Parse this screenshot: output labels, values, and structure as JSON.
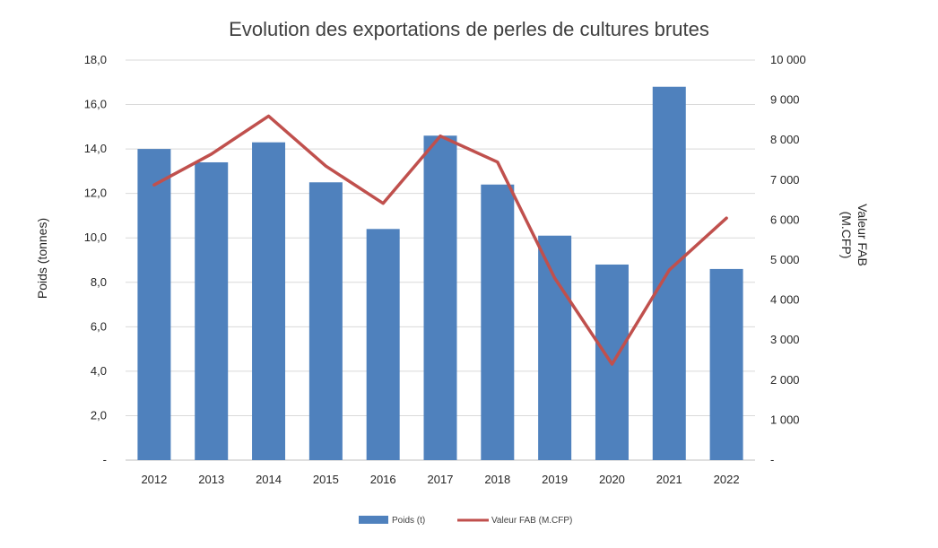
{
  "chart_data": {
    "type": "bar+line",
    "title": "Evolution des exportations de perles de cultures brutes",
    "categories": [
      "2012",
      "2013",
      "2014",
      "2015",
      "2016",
      "2017",
      "2018",
      "2019",
      "2020",
      "2021",
      "2022"
    ],
    "series": [
      {
        "name": "Poids (t)",
        "type": "bar",
        "axis": "left",
        "color": "#4F81BD",
        "values": [
          14.0,
          13.4,
          14.3,
          12.5,
          10.4,
          14.6,
          12.4,
          10.1,
          8.8,
          16.8,
          8.6
        ]
      },
      {
        "name": "Valeur FAB (M.CFP)",
        "type": "line",
        "axis": "right",
        "color": "#C0504D",
        "values": [
          6880,
          7650,
          8600,
          7350,
          6420,
          8100,
          7450,
          4550,
          2400,
          4750,
          6050
        ]
      }
    ],
    "y_left": {
      "label": "Poids (tonnes)",
      "min": 0,
      "max": 18,
      "ticks": [
        "-",
        "2,0",
        "4,0",
        "6,0",
        "8,0",
        "10,0",
        "12,0",
        "14,0",
        "16,0",
        "18,0"
      ]
    },
    "y_right": {
      "label_lines": [
        "Valeur FAB",
        "(M.CFP)"
      ],
      "min": 0,
      "max": 10000,
      "ticks": [
        "-",
        "1 000",
        "2 000",
        "3 000",
        "4 000",
        "5 000",
        "6 000",
        "7 000",
        "8 000",
        "9 000",
        "10 000"
      ]
    },
    "grid": true,
    "legend_position": "bottom"
  }
}
